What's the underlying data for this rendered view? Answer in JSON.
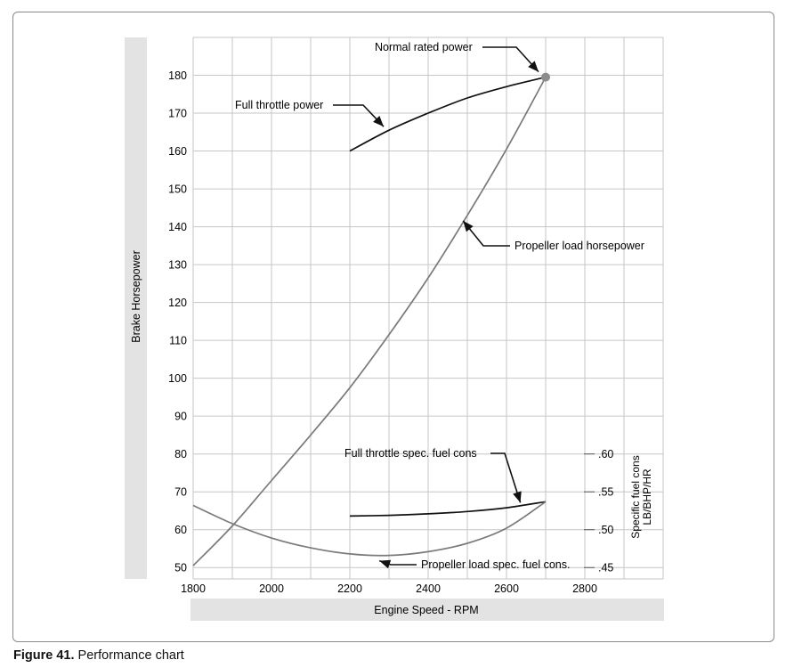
{
  "figure_caption": {
    "number": "Figure 41.",
    "text": "Performance chart"
  },
  "chart_data": {
    "type": "line",
    "xlabel": "Engine Speed - RPM",
    "ylabel_left": "Brake Horsepower",
    "ylabel_right": "Specific fuel cons LB/BHP/HR",
    "ylabel_right_lines": [
      "Specific fuel cons",
      "LB/BHP/HR"
    ],
    "xlim": [
      1800,
      3000
    ],
    "ylim": [
      47,
      190
    ],
    "grid": true,
    "x_ticks": [
      1800,
      2000,
      2200,
      2400,
      2600,
      2800
    ],
    "x_tick_labels": [
      "1800",
      "2000",
      "2200",
      "2400",
      "2600",
      "2800"
    ],
    "y_ticks": [
      50,
      60,
      70,
      80,
      90,
      100,
      110,
      120,
      130,
      140,
      150,
      160,
      170,
      180
    ],
    "y_tick_labels": [
      "50",
      "60",
      "70",
      "80",
      "90",
      "100",
      "110",
      "120",
      "130",
      "140",
      "150",
      "160",
      "170",
      "180"
    ],
    "right_axis": {
      "ticks": [
        0.45,
        0.5,
        0.55,
        0.6
      ],
      "tick_labels": [
        ".45",
        ".50",
        ".55",
        ".60"
      ],
      "range": [
        0.45,
        0.6
      ],
      "spans_hp": [
        50,
        80
      ]
    },
    "series": [
      {
        "name": "Full throttle power",
        "axis": "left",
        "color": "#111111",
        "x": [
          2200,
          2300,
          2400,
          2500,
          2600,
          2700
        ],
        "y": [
          160,
          165.5,
          170,
          174,
          177,
          179.5
        ]
      },
      {
        "name": "Propeller load horsepower",
        "axis": "left",
        "color": "#7a7a7a",
        "x": [
          1800,
          1900,
          2000,
          2100,
          2200,
          2300,
          2400,
          2500,
          2600,
          2700
        ],
        "y": [
          50.5,
          61,
          73,
          85,
          97.5,
          111.5,
          126.5,
          143,
          160.5,
          179.5
        ]
      },
      {
        "name": "Full throttle spec. fuel cons",
        "axis": "right",
        "color": "#111111",
        "x": [
          2200,
          2300,
          2400,
          2500,
          2600,
          2700
        ],
        "y": [
          0.518,
          0.519,
          0.521,
          0.524,
          0.529,
          0.537
        ]
      },
      {
        "name": "Propeller load spec. fuel cons.",
        "axis": "right",
        "color": "#7a7a7a",
        "x": [
          1800,
          1900,
          2000,
          2100,
          2200,
          2300,
          2400,
          2500,
          2600,
          2700
        ],
        "y": [
          0.532,
          0.508,
          0.489,
          0.476,
          0.468,
          0.466,
          0.471,
          0.482,
          0.502,
          0.537
        ]
      }
    ],
    "point": {
      "name": "Normal rated power",
      "x": 2700,
      "y": 179.5,
      "color": "#8c8c8c"
    },
    "annotations": [
      {
        "text": "Normal rated power",
        "target": [
          2700,
          179.5
        ],
        "axis": "left"
      },
      {
        "text": "Full throttle power",
        "target": [
          2300,
          165.5
        ],
        "axis": "left"
      },
      {
        "text": "Propeller load horsepower",
        "target": [
          2480,
          143
        ],
        "axis": "left"
      },
      {
        "text": "Full throttle spec. fuel cons",
        "target": [
          2640,
          0.531
        ],
        "axis": "right"
      },
      {
        "text": "Propeller load spec. fuel cons.",
        "target": [
          2280,
          0.466
        ],
        "axis": "right"
      }
    ]
  }
}
